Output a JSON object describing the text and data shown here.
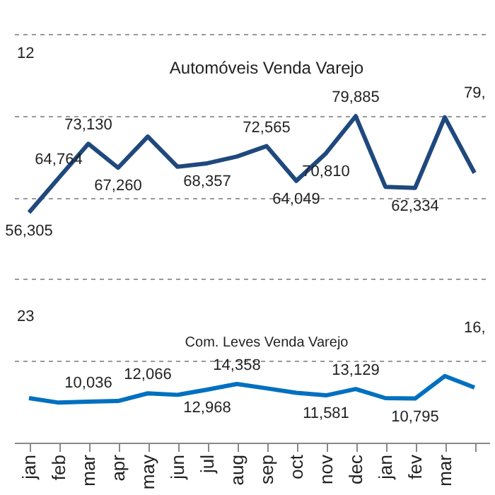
{
  "chart_data": {
    "type": "line",
    "categories": [
      "jan",
      "feb",
      "mar",
      "apr",
      "may",
      "jun",
      "jul",
      "aug",
      "sep",
      "oct",
      "nov",
      "dec",
      "jan",
      "fev",
      "mar",
      null
    ],
    "series": [
      {
        "name": "Automóveis Venda Varejo",
        "color": "#1f497d",
        "values": [
          56305,
          64764,
          73130,
          67260,
          74900,
          67500,
          68357,
          70000,
          72565,
          64049,
          70810,
          79885,
          62600,
          62334,
          79600,
          66000
        ],
        "value_labels": [
          "56,305",
          "64,764",
          "73,130",
          "67,260",
          null,
          null,
          "68,357",
          null,
          "72,565",
          "64,049",
          "70,810",
          "79,885",
          null,
          "62,334",
          null,
          null
        ]
      },
      {
        "name": "Com. Leves Venda Varejo",
        "color": "#0070c0",
        "values": [
          10900,
          9800,
          10036,
          10200,
          12066,
          11700,
          12968,
          14358,
          13300,
          12200,
          11581,
          13129,
          10900,
          10795,
          16300,
          13500
        ],
        "value_labels": [
          null,
          null,
          "10,036",
          null,
          "12,066",
          null,
          "12,968",
          "14,358",
          null,
          null,
          "11,581",
          "13,129",
          null,
          "10,795",
          null,
          null
        ]
      }
    ],
    "annotations": [
      "12",
      "79,",
      "23",
      "16,"
    ],
    "ylim": [
      0,
      100000
    ],
    "yticks": [
      {
        "value": 0,
        "label": null
      },
      {
        "value": 20000,
        "label": null
      },
      {
        "value": 40000,
        "label": null
      },
      {
        "value": 60000,
        "label": null
      },
      {
        "value": 80000,
        "label": null
      },
      {
        "value": 100000,
        "label": null
      }
    ],
    "tick_labels": "x",
    "grid": "y",
    "marker": "none",
    "line_style": "solid"
  }
}
